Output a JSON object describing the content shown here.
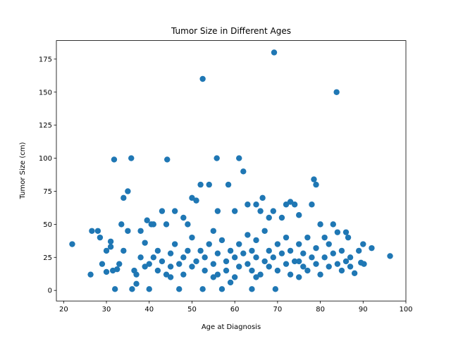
{
  "chart_data": {
    "type": "scatter",
    "title": "Tumor Size in Different Ages",
    "x_label": "Age at Diagnosis",
    "y_label": "Tumor Size (cm)",
    "color": "#1f77b4",
    "xlim": [
      18.3,
      100.0
    ],
    "ylim": [
      -8,
      189
    ],
    "xticks": [
      20,
      30,
      40,
      50,
      60,
      70,
      80,
      90,
      100
    ],
    "yticks": [
      0,
      25,
      50,
      75,
      100,
      125,
      150,
      175
    ],
    "x": [
      22,
      26.3,
      26.6,
      28,
      28.5,
      29,
      30,
      30,
      31,
      31,
      31.5,
      31.8,
      32,
      32.5,
      33,
      33.5,
      34,
      34,
      35,
      35,
      35.8,
      36,
      36.5,
      37,
      38,
      39,
      39.5,
      40,
      40.5,
      41,
      43,
      44,
      44.2,
      46,
      47,
      48,
      49,
      50,
      51,
      52,
      52.5,
      52.5,
      54,
      55.8,
      56,
      57,
      58.5,
      59,
      60,
      61,
      62,
      63,
      64,
      65,
      66,
      66.5,
      68,
      69,
      69.2,
      69.5,
      71,
      72,
      73,
      74,
      75,
      75,
      77,
      78,
      78.5,
      79,
      80,
      81,
      82,
      83,
      83.8,
      84,
      85,
      86,
      86.5,
      87,
      88,
      89,
      89.5,
      90,
      90.2,
      92,
      96.3,
      40,
      41,
      42,
      42,
      43,
      44,
      45,
      45,
      46,
      47,
      48,
      48,
      49,
      50,
      50,
      51,
      52,
      53,
      53,
      54,
      55,
      55,
      56,
      56,
      57,
      58,
      58,
      59,
      60,
      60,
      61,
      61,
      62,
      63,
      63,
      64,
      64,
      65,
      65,
      66,
      67,
      67,
      68,
      68,
      69,
      70,
      70,
      71,
      72,
      72,
      73,
      73,
      74,
      75,
      76,
      76,
      77,
      78,
      79,
      79,
      80,
      81,
      82,
      83,
      84,
      85,
      86,
      87,
      45,
      55,
      65,
      75,
      38,
      37,
      39
    ],
    "y": [
      35,
      12,
      45,
      45,
      40,
      20,
      30,
      14,
      37,
      33,
      15,
      99,
      1,
      16,
      20,
      50,
      70,
      30,
      75,
      45,
      100,
      1,
      15,
      5,
      45,
      36,
      53,
      1,
      50,
      50,
      60,
      50,
      99,
      60,
      1,
      55,
      50,
      70,
      68,
      80,
      160,
      1,
      80,
      100,
      60,
      1,
      80,
      6,
      60,
      100,
      90,
      65,
      1,
      65,
      60,
      70,
      55,
      60,
      180,
      1,
      55,
      65,
      67,
      65,
      57,
      10,
      40,
      65,
      84,
      80,
      50,
      40,
      35,
      50,
      150,
      44,
      30,
      44,
      40,
      25,
      13,
      30,
      21,
      35,
      20,
      32,
      26,
      20,
      25,
      15,
      30,
      22,
      12,
      28,
      18,
      35,
      20,
      25,
      12,
      30,
      18,
      40,
      22,
      30,
      15,
      25,
      35,
      20,
      45,
      12,
      28,
      38,
      22,
      15,
      30,
      25,
      10,
      35,
      18,
      28,
      20,
      42,
      15,
      30,
      25,
      38,
      12,
      22,
      45,
      30,
      18,
      25,
      35,
      15,
      28,
      20,
      40,
      12,
      30,
      22,
      35,
      18,
      28,
      15,
      25,
      20,
      32,
      12,
      25,
      18,
      28,
      20,
      15,
      22,
      18,
      10,
      10,
      10,
      22,
      25,
      12,
      18
    ]
  }
}
